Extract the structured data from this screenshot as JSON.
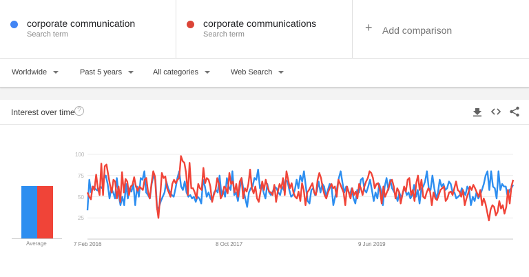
{
  "search_terms": [
    {
      "label": "corporate communication",
      "sublabel": "Search term",
      "color": "#4285f4"
    },
    {
      "label": "corporate communications",
      "sublabel": "Search term",
      "color": "#db4437"
    }
  ],
  "add_comparison": {
    "icon": "plus-icon",
    "label": "Add comparison"
  },
  "filters": [
    {
      "label": "Worldwide",
      "icon": "caret-down-icon"
    },
    {
      "label": "Past 5 years",
      "icon": "caret-down-icon"
    },
    {
      "label": "All categories",
      "icon": "caret-down-icon"
    },
    {
      "label": "Web Search",
      "icon": "caret-down-icon"
    }
  ],
  "card": {
    "title": "Interest over time",
    "help_icon": "?",
    "actions": [
      "download-icon",
      "embed-icon",
      "share-icon"
    ]
  },
  "chart_data": {
    "type": "line",
    "title": "Interest over time",
    "xlabel": "",
    "ylabel": "",
    "ylim": [
      0,
      100
    ],
    "yticks": [
      25,
      50,
      75,
      100
    ],
    "xtick_labels": [
      "7 Feb 2016",
      "8 Oct 2017",
      "9 Jun 2019"
    ],
    "grid": true,
    "legend": [
      "corporate communication",
      "corporate communications"
    ],
    "average": {
      "label": "Average",
      "values": [
        {
          "name": "corporate communication",
          "value": 57,
          "color": "#2d8ef0"
        },
        {
          "name": "corporate communications",
          "value": 57,
          "color": "#f04438"
        }
      ]
    },
    "series": [
      {
        "name": "corporate communication",
        "color": "#2d8ef0",
        "values": [
          34,
          70,
          55,
          62,
          60,
          58,
          57,
          62,
          60,
          72,
          75,
          65,
          48,
          60,
          55,
          48,
          72,
          52,
          40,
          50,
          40,
          65,
          48,
          60,
          56,
          65,
          40,
          62,
          50,
          72,
          70,
          80,
          55,
          52,
          48,
          65,
          75,
          70,
          35,
          38,
          45,
          50,
          55,
          68,
          60,
          55,
          52,
          50,
          60,
          72,
          80,
          62,
          58,
          68,
          55,
          50,
          52,
          48,
          50,
          44,
          50,
          48,
          42,
          70,
          62,
          50,
          55,
          48,
          45,
          55,
          58,
          55,
          75,
          52,
          58,
          50,
          72,
          62,
          58,
          80,
          52,
          55,
          45,
          60,
          72,
          58,
          48,
          38,
          55,
          60,
          62,
          72,
          70,
          82,
          60,
          65,
          55,
          48,
          65,
          55,
          52,
          56,
          62,
          60,
          55,
          52,
          62,
          58,
          70,
          68,
          58,
          50,
          52,
          58,
          70,
          60,
          75,
          68,
          80,
          62,
          45,
          42,
          58,
          60,
          52,
          56,
          68,
          55,
          65,
          62,
          50,
          58,
          65,
          62,
          40,
          50,
          60,
          72,
          80,
          66,
          55,
          62,
          58,
          52,
          60,
          48,
          42,
          58,
          55,
          70,
          72,
          58,
          55,
          62,
          70,
          58,
          45,
          55,
          48,
          65,
          58,
          40,
          62,
          72,
          58,
          70,
          60,
          56,
          52,
          45,
          55,
          48,
          56,
          60,
          52,
          55,
          48,
          52,
          64,
          50,
          58,
          42,
          60,
          62,
          68,
          80,
          60,
          58,
          75,
          60,
          48,
          55,
          70,
          62,
          65,
          58,
          60,
          68,
          65,
          55,
          55,
          48,
          50,
          52,
          60,
          56,
          52,
          62,
          58,
          40,
          50,
          45,
          55,
          48,
          52,
          58,
          65,
          75,
          80,
          58,
          80,
          62,
          60,
          48,
          80,
          58,
          65,
          62,
          62,
          50,
          58,
          60,
          64
        ],
        "note": "approximate weekly values read from the plotted line"
      },
      {
        "name": "corporate communications",
        "color": "#f04438",
        "values": [
          55,
          50,
          47,
          62,
          58,
          76,
          60,
          52,
          89,
          52,
          86,
          88,
          76,
          64,
          55,
          70,
          68,
          48,
          62,
          44,
          79,
          55,
          71,
          68,
          52,
          62,
          64,
          73,
          62,
          57,
          62,
          60,
          58,
          70,
          72,
          56,
          48,
          66,
          80,
          74,
          40,
          25,
          50,
          78,
          72,
          74,
          60,
          55,
          50,
          65,
          70,
          66,
          70,
          72,
          98,
          92,
          90,
          78,
          52,
          90,
          60,
          60,
          55,
          48,
          65,
          60,
          58,
          84,
          66,
          72,
          70,
          62,
          44,
          52,
          58,
          72,
          65,
          48,
          52,
          62,
          60,
          54,
          78,
          65,
          68,
          55,
          65,
          50,
          68,
          72,
          48,
          60,
          56,
          65,
          82,
          60,
          54,
          62,
          48,
          44,
          56,
          68,
          58,
          70,
          62,
          56,
          55,
          52,
          64,
          44,
          56,
          65,
          60,
          72,
          52,
          80,
          70,
          60,
          66,
          55,
          50,
          48,
          56,
          45,
          66,
          58,
          40,
          55,
          58,
          62,
          66,
          55,
          52,
          70,
          78,
          72,
          60,
          52,
          48,
          55,
          60,
          65,
          60,
          62,
          50,
          70,
          65,
          60,
          55,
          40,
          62,
          55,
          48,
          60,
          52,
          56,
          48,
          65,
          60,
          52,
          62,
          68,
          72,
          80,
          78,
          72,
          60,
          65,
          66,
          58,
          42,
          62,
          50,
          55,
          60,
          68,
          70,
          62,
          48,
          60,
          56,
          42,
          52,
          62,
          56,
          70,
          72,
          52,
          58,
          45,
          66,
          75,
          58,
          70,
          50,
          48,
          55,
          60,
          56,
          40,
          55,
          48,
          46,
          52,
          58,
          60,
          62,
          45,
          48,
          55,
          56,
          52,
          60,
          68,
          58,
          56,
          50,
          58,
          40,
          48,
          54,
          62,
          58,
          64,
          60,
          55,
          50,
          58,
          40,
          48,
          42,
          32,
          22,
          35,
          40,
          38,
          28,
          32,
          45,
          36,
          40,
          30,
          38,
          58,
          42,
          62,
          70
        ],
        "note": "approximate weekly values read from the plotted line"
      }
    ]
  }
}
